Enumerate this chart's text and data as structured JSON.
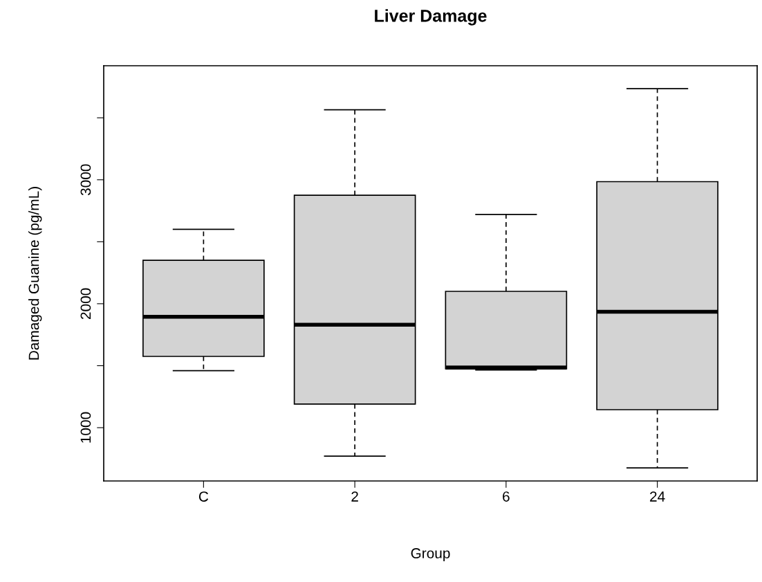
{
  "chart_data": {
    "type": "box",
    "title": "Liver Damage",
    "xlabel": "Group",
    "ylabel": "Damaged Guanine (pg/mL)",
    "categories": [
      "C",
      "2",
      "6",
      "24"
    ],
    "series": [
      {
        "color": "#d3d3d3",
        "boxes": [
          {
            "low": 1460,
            "q1": 1575,
            "median": 1895,
            "q3": 2350,
            "high": 2600
          },
          {
            "low": 770,
            "q1": 1190,
            "median": 1830,
            "q3": 2875,
            "high": 3565
          },
          {
            "low": 1465,
            "q1": 1475,
            "median": 1485,
            "q3": 2100,
            "high": 2720
          },
          {
            "low": 675,
            "q1": 1145,
            "median": 1935,
            "q3": 2985,
            "high": 3735
          }
        ]
      }
    ],
    "ylim": [
      570,
      3920
    ],
    "yticks": [
      1000,
      {
        "value": 1500,
        "label": null
      },
      2000,
      {
        "value": 2500,
        "label": null
      },
      3000,
      {
        "value": 3500,
        "label": null
      }
    ],
    "grid": false,
    "legend": false
  }
}
